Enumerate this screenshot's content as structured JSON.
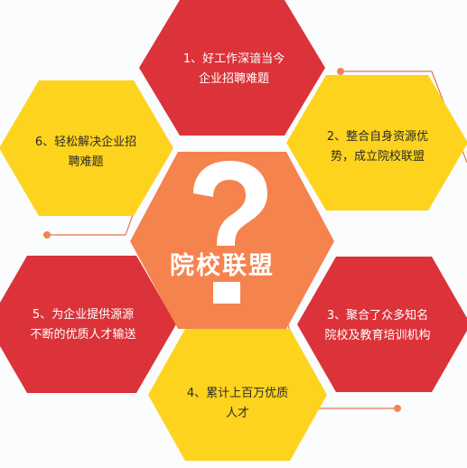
{
  "center": {
    "title": "院校联盟",
    "icon": "question-mark-icon"
  },
  "items": [
    {
      "id": 1,
      "text": "1、好工作深谙当今企业招聘难题",
      "line1": "1、好工作深谙当今",
      "line2": "企业招聘难题"
    },
    {
      "id": 2,
      "text": "2、整合自身资源优势，成立院校联盟",
      "line1": "2、整合自身资源优",
      "line2": "势，成立院校联盟"
    },
    {
      "id": 3,
      "text": "3、聚合了众多知名院校及教育培训机构",
      "line1": "3、聚合了众多知名",
      "line2": "院校及教育培训机构"
    },
    {
      "id": 4,
      "text": "4、累计上百万优质人才",
      "line1": "4、累计上百万优质",
      "line2": "人才"
    },
    {
      "id": 5,
      "text": "5、为企业提供源源不断的优质人才输送",
      "line1": "5、为企业提供源源",
      "line2": "不断的优质人才输送"
    },
    {
      "id": 6,
      "text": "6、轻松解决企业招聘难题",
      "line1": "6、轻松解决企业招",
      "line2": "聘难题"
    }
  ],
  "colors": {
    "red": "#db3339",
    "yellow": "#fdd31e",
    "orange": "#f5834e",
    "connector": "#e8744a"
  }
}
